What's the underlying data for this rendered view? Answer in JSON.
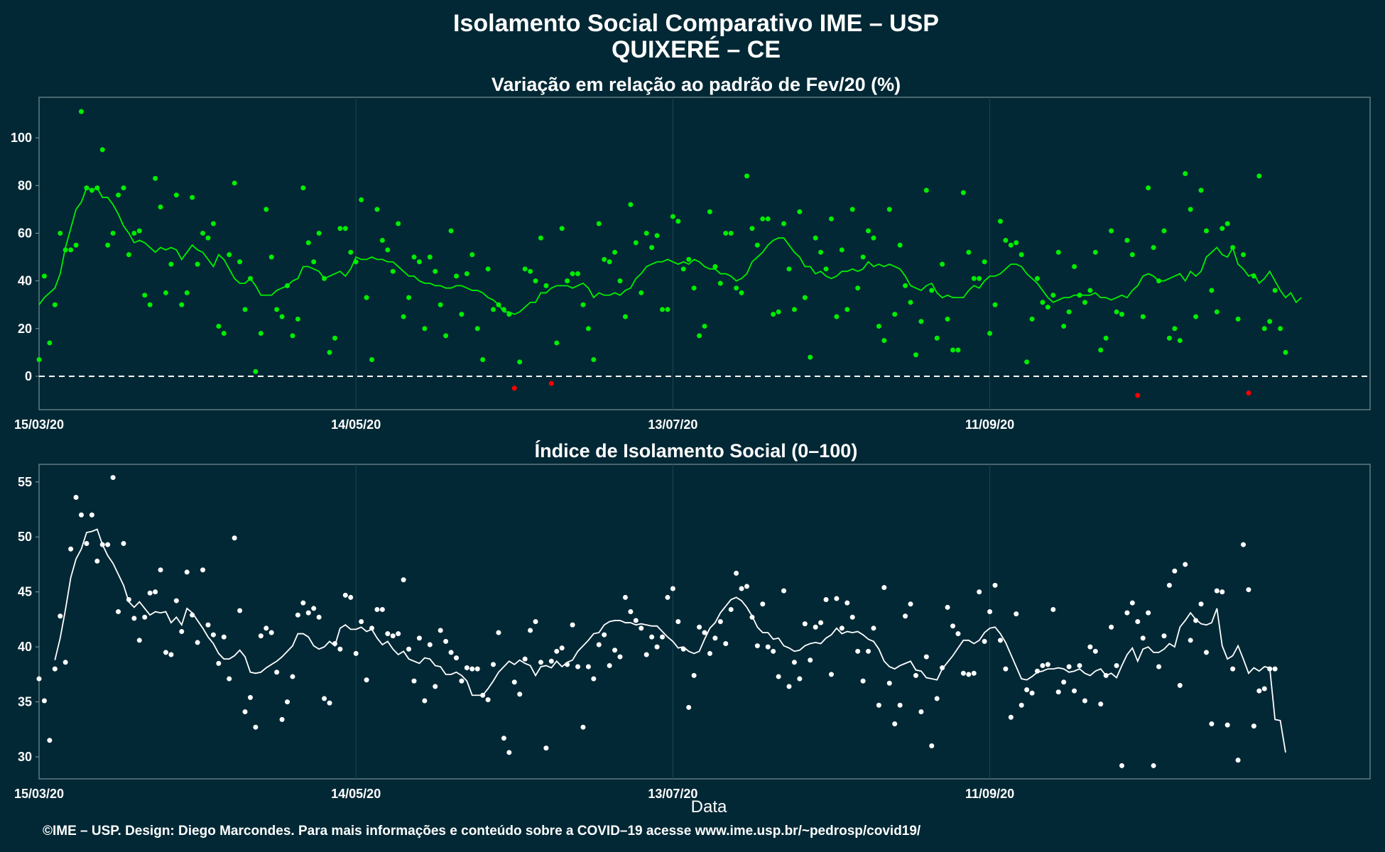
{
  "title_line1": "Isolamento Social Comparativo IME – USP",
  "title_line2": "QUIXERÉ – CE",
  "xlabel": "Data",
  "footer": "©IME – USP. Design: Diego Marcondes. Para mais informações e conteúdo sobre a COVID–19 acesse www.ime.usp.br/~pedrosp/covid19/",
  "colors": {
    "background": "#022835",
    "panel_border": "#5f7a82",
    "grid": "#1d4552",
    "top_points": "#00ee00",
    "top_negative": "#ff0000",
    "bottom_points": "#ffffff"
  },
  "chart_data": [
    {
      "type": "scatter",
      "title": "Variação em relação ao padrão de Fev/20 (%)",
      "xlabel": "",
      "ylabel": "",
      "x_start": "15/03/20",
      "x_range_days": [
        0,
        252
      ],
      "x_ticks": [
        "15/03/20",
        "14/05/20",
        "13/07/20",
        "11/09/20"
      ],
      "x_tick_days": [
        0,
        60,
        120,
        180
      ],
      "ylim": [
        -14,
        117
      ],
      "y_ticks": [
        0,
        20,
        40,
        60,
        80,
        100
      ],
      "reference_line": 0,
      "grid": true,
      "values": [
        7,
        42,
        14,
        30,
        60,
        53,
        53,
        55,
        111,
        79,
        78,
        79,
        95,
        55,
        60,
        76,
        79,
        51,
        60,
        61,
        34,
        30,
        83,
        71,
        35,
        47,
        76,
        30,
        35,
        75,
        47,
        60,
        58,
        64,
        21,
        18,
        51,
        81,
        48,
        28,
        41,
        2,
        18,
        70,
        50,
        28,
        25,
        38,
        17,
        24,
        79,
        56,
        48,
        60,
        41,
        10,
        16,
        62,
        62,
        52,
        48,
        74,
        33,
        7,
        70,
        57,
        53,
        44,
        64,
        25,
        33,
        50,
        48,
        20,
        50,
        44,
        30,
        17,
        61,
        42,
        26,
        43,
        51,
        20,
        7,
        45,
        28,
        30,
        28,
        26,
        -5,
        6,
        45,
        44,
        40,
        58,
        38,
        -3,
        14,
        62,
        40,
        43,
        43,
        30,
        20,
        7,
        64,
        49,
        48,
        52,
        40,
        25,
        72,
        56,
        35,
        60,
        54,
        59,
        28,
        28,
        67,
        65,
        45,
        49,
        37,
        17,
        21,
        69,
        46,
        39,
        60,
        60,
        37,
        35,
        84,
        62,
        55,
        66,
        66,
        26,
        27,
        64,
        45,
        28,
        69,
        33,
        8,
        58,
        52,
        45,
        66,
        25,
        53,
        28,
        70,
        37,
        50,
        61,
        58,
        21,
        15,
        70,
        26,
        55,
        38,
        31,
        9,
        23,
        78,
        36,
        16,
        47,
        24,
        11,
        11,
        77,
        52,
        41,
        41,
        48,
        18,
        30,
        65,
        57,
        55,
        56,
        51,
        6,
        24,
        41,
        31,
        29,
        34,
        52,
        21,
        27,
        46,
        34,
        31,
        36,
        52,
        11,
        16,
        61,
        27,
        26,
        57,
        51,
        -8,
        25,
        79,
        54,
        40,
        61,
        16,
        20,
        15,
        85,
        70,
        25,
        78,
        61,
        36,
        27,
        62,
        64,
        54,
        24,
        51,
        -7,
        42,
        84,
        20,
        23,
        36,
        20,
        10
      ],
      "moving_average": [
        30,
        33,
        35,
        37,
        43,
        54,
        62,
        70,
        73,
        79,
        78,
        79,
        75,
        75,
        72,
        68,
        63,
        60,
        56,
        57,
        56,
        54,
        52,
        54,
        53,
        54,
        53,
        49,
        52,
        55,
        53,
        52,
        49,
        46,
        51,
        49,
        45,
        41,
        39,
        39,
        41,
        38,
        34,
        34,
        34,
        36,
        37,
        38,
        40,
        41,
        46,
        46,
        45,
        44,
        41,
        42,
        43,
        44,
        42,
        45,
        50,
        49,
        49,
        50,
        49,
        49,
        48,
        48,
        46,
        44,
        42,
        42,
        40,
        39,
        39,
        38,
        38,
        37,
        37,
        38,
        38,
        37,
        36,
        36,
        35,
        33,
        32,
        30,
        27,
        27,
        26,
        27,
        29,
        31,
        31,
        35,
        35,
        37,
        38,
        38,
        38,
        37,
        38,
        39,
        37,
        33,
        35,
        34,
        34,
        35,
        34,
        36,
        37,
        41,
        43,
        46,
        47,
        48,
        48,
        49,
        48,
        47,
        48,
        47,
        49,
        48,
        46,
        45,
        45,
        43,
        43,
        42,
        40,
        41,
        43,
        48,
        50,
        52,
        55,
        57,
        58,
        58,
        55,
        52,
        50,
        46,
        46,
        43,
        44,
        42,
        41,
        42,
        44,
        44,
        45,
        44,
        45,
        48,
        46,
        47,
        46,
        47,
        46,
        45,
        42,
        38,
        37,
        36,
        38,
        39,
        35,
        33,
        34,
        33,
        33,
        33,
        36,
        38,
        37,
        40,
        42,
        42,
        43,
        45,
        47,
        47,
        46,
        43,
        41,
        39,
        36,
        33,
        31,
        32,
        33,
        33,
        34,
        34,
        34,
        34,
        35,
        33,
        33,
        32,
        33,
        34,
        33,
        36,
        38,
        42,
        43,
        42,
        40,
        40,
        41,
        42,
        43,
        40,
        44,
        42,
        44,
        50,
        52,
        54,
        51,
        50,
        54,
        47,
        45,
        42,
        43,
        39,
        41,
        44,
        40,
        36,
        33,
        35,
        31,
        33
      ],
      "negative_points": [
        {
          "day": 90,
          "value": -5
        },
        {
          "day": 97,
          "value": -3
        },
        {
          "day": 209,
          "value": -8
        },
        {
          "day": 232,
          "value": -7
        }
      ]
    },
    {
      "type": "scatter",
      "title": "Índice de Isolamento Social (0–100)",
      "xlabel": "Data",
      "ylabel": "",
      "x_start": "15/03/20",
      "x_range_days": [
        0,
        252
      ],
      "x_ticks": [
        "15/03/20",
        "14/05/20",
        "13/07/20",
        "11/09/20"
      ],
      "x_tick_days": [
        0,
        60,
        120,
        180
      ],
      "ylim": [
        28,
        56.6
      ],
      "y_ticks": [
        30,
        35,
        40,
        45,
        50,
        55
      ],
      "grid": true,
      "values": [
        37.1,
        35.1,
        31.5,
        38.0,
        42.8,
        38.6,
        48.9,
        53.6,
        52.0,
        49.4,
        52.0,
        47.8,
        49.3,
        49.3,
        55.4,
        43.2,
        49.4,
        44.3,
        42.6,
        40.6,
        42.7,
        44.9,
        45.0,
        47.0,
        39.5,
        39.3,
        44.2,
        41.4,
        46.8,
        42.9,
        40.4,
        47.0,
        42.0,
        41.1,
        38.5,
        40.9,
        37.1,
        49.9,
        43.3,
        34.1,
        35.4,
        32.7,
        41.0,
        41.7,
        41.3,
        37.7,
        33.4,
        35.0,
        37.3,
        42.9,
        44.0,
        43.1,
        43.5,
        42.7,
        35.3,
        34.9,
        40.3,
        39.8,
        44.7,
        44.5,
        39.4,
        42.3,
        37.0,
        41.7,
        43.4,
        43.4,
        41.2,
        41.0,
        41.2,
        46.1,
        39.8,
        36.9,
        40.8,
        35.1,
        40.2,
        36.4,
        41.5,
        40.5,
        39.5,
        39.0,
        36.9,
        38.1,
        38.0,
        38.0,
        35.6,
        35.2,
        38.4,
        41.3,
        31.7,
        30.4,
        36.8,
        35.7,
        38.9,
        41.5,
        42.3,
        38.6,
        30.8,
        38.7,
        39.6,
        39.9,
        38.4,
        42.0,
        38.2,
        32.7,
        38.2,
        37.1,
        40.2,
        41.1,
        38.3,
        39.7,
        39.1,
        44.5,
        43.2,
        42.4,
        41.7,
        39.3,
        40.9,
        40.0,
        40.9,
        44.5,
        45.3,
        42.3,
        39.8,
        34.5,
        37.4,
        41.8,
        41.3,
        39.4,
        40.8,
        42.3,
        40.3,
        43.4,
        46.7,
        45.3,
        45.5,
        42.7,
        40.1,
        43.9,
        40.0,
        39.6,
        37.3,
        45.1,
        36.4,
        38.6,
        37.1,
        42.1,
        38.8,
        41.8,
        42.2,
        44.3,
        37.5,
        44.4,
        41.7,
        44.0,
        42.7,
        39.6,
        36.9,
        39.6,
        41.7,
        34.7,
        45.4,
        36.7,
        33.0,
        34.7,
        42.8,
        43.9,
        37.4,
        34.1,
        39.1,
        31.0,
        35.3,
        38.1,
        43.6,
        41.9,
        41.2,
        37.6,
        37.5,
        37.6,
        45.0,
        40.5,
        43.2,
        45.6,
        40.6,
        38.0,
        33.6,
        43.0,
        34.7,
        36.1,
        35.8,
        37.8,
        38.3,
        38.4,
        43.4,
        35.9,
        36.8,
        38.2,
        36.0,
        38.3,
        35.1,
        40.0,
        39.6,
        34.8,
        37.4,
        41.8,
        38.3,
        29.2,
        43.1,
        44.0,
        42.3,
        40.8,
        43.1,
        29.2,
        38.2,
        41.0,
        45.6,
        46.9,
        36.5,
        47.5,
        40.6,
        42.4,
        43.9,
        39.5,
        33.0,
        45.1,
        45.0,
        32.9,
        38.0,
        29.7,
        49.3,
        45.2,
        32.8,
        36.0,
        36.2,
        38.0,
        38.0
      ],
      "moving_average": [
        null,
        null,
        null,
        38.8,
        40.8,
        43.4,
        46.3,
        48.0,
        48.9,
        50.4,
        50.5,
        50.7,
        49.3,
        48.3,
        47.6,
        46.6,
        45.6,
        44.1,
        43.6,
        44.1,
        43.5,
        42.9,
        43.2,
        43.1,
        43.2,
        42.2,
        42.7,
        42.0,
        43.5,
        43.1,
        42.4,
        41.7,
        40.9,
        40.3,
        39.4,
        38.9,
        38.9,
        39.2,
        39.7,
        39.1,
        37.7,
        37.6,
        37.7,
        38.1,
        38.4,
        38.7,
        39.1,
        39.6,
        40.1,
        41.2,
        41.2,
        40.9,
        40.1,
        39.8,
        40.0,
        40.5,
        40.1,
        41.7,
        42.0,
        41.6,
        41.6,
        41.8,
        41.4,
        41.6,
        40.8,
        40.2,
        40.5,
        39.8,
        39.3,
        39.6,
        38.9,
        38.7,
        38.5,
        39.0,
        38.9,
        38.3,
        38.2,
        37.5,
        37.5,
        37.7,
        37.4,
        36.9,
        35.6,
        35.6,
        35.6,
        36.2,
        36.9,
        37.7,
        38.2,
        38.7,
        38.4,
        38.8,
        38.5,
        38.3,
        37.4,
        38.2,
        38.3,
        38.1,
        38.7,
        38.2,
        38.6,
        38.8,
        39.6,
        40.1,
        40.6,
        41.2,
        41.3,
        42.0,
        42.3,
        42.4,
        42.4,
        42.2,
        42.2,
        42.0,
        42.1,
        42.0,
        41.9,
        41.9,
        41.4,
        40.9,
        40.5,
        39.9,
        40.0,
        39.6,
        39.4,
        39.6,
        40.7,
        41.7,
        42.2,
        43.1,
        43.7,
        44.3,
        44.5,
        44.2,
        43.6,
        42.8,
        41.8,
        41.3,
        41.3,
        40.7,
        40.8,
        40.1,
        39.9,
        39.6,
        39.7,
        40.1,
        40.3,
        40.4,
        40.3,
        40.8,
        41.1,
        41.7,
        41.2,
        41.4,
        41.3,
        41.4,
        41.1,
        40.7,
        40.5,
        39.8,
        38.7,
        38.2,
        38.0,
        38.3,
        38.5,
        38.7,
        37.9,
        37.8,
        37.2,
        37.1,
        37.0,
        38.0,
        38.6,
        39.2,
        39.9,
        40.6,
        40.6,
        40.3,
        40.6,
        41.3,
        41.7,
        41.8,
        41.2,
        40.4,
        39.3,
        38.2,
        37.1,
        37.0,
        37.3,
        37.7,
        37.8,
        38.0,
        38.0,
        38.1,
        38.0,
        37.7,
        37.8,
        38.0,
        37.6,
        37.4,
        37.8,
        38.0,
        37.4,
        37.6,
        37.2,
        38.3,
        39.3,
        39.9,
        38.7,
        39.8,
        40.0,
        39.5,
        39.5,
        39.8,
        40.3,
        40.0,
        41.8,
        42.4,
        43.1,
        42.5,
        42.1,
        42.0,
        42.2,
        43.5,
        40.1,
        38.9,
        39.2,
        40.1,
        38.9,
        37.6,
        38.1,
        37.8,
        38.2,
        38.1,
        33.4,
        33.3,
        30.4
      ]
    }
  ]
}
